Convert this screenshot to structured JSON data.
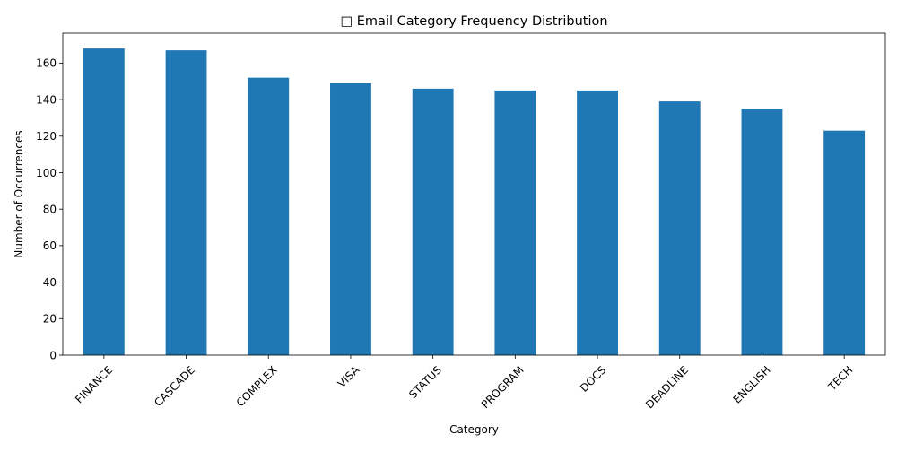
{
  "chart_data": {
    "type": "bar",
    "title": "□ Email Category Frequency Distribution",
    "xlabel": "Category",
    "ylabel": "Number of Occurrences",
    "categories": [
      "FINANCE",
      "CASCADE",
      "COMPLEX",
      "VISA",
      "STATUS",
      "PROGRAM",
      "DOCS",
      "DEADLINE",
      "ENGLISH",
      "TECH"
    ],
    "values": [
      168,
      167,
      152,
      149,
      146,
      145,
      145,
      139,
      135,
      123
    ],
    "ylim": [
      0,
      176.4
    ],
    "yticks": [
      0,
      20,
      40,
      60,
      80,
      100,
      120,
      140,
      160
    ],
    "bar_color": "#1f77b4",
    "grid": false,
    "legend": "none"
  }
}
